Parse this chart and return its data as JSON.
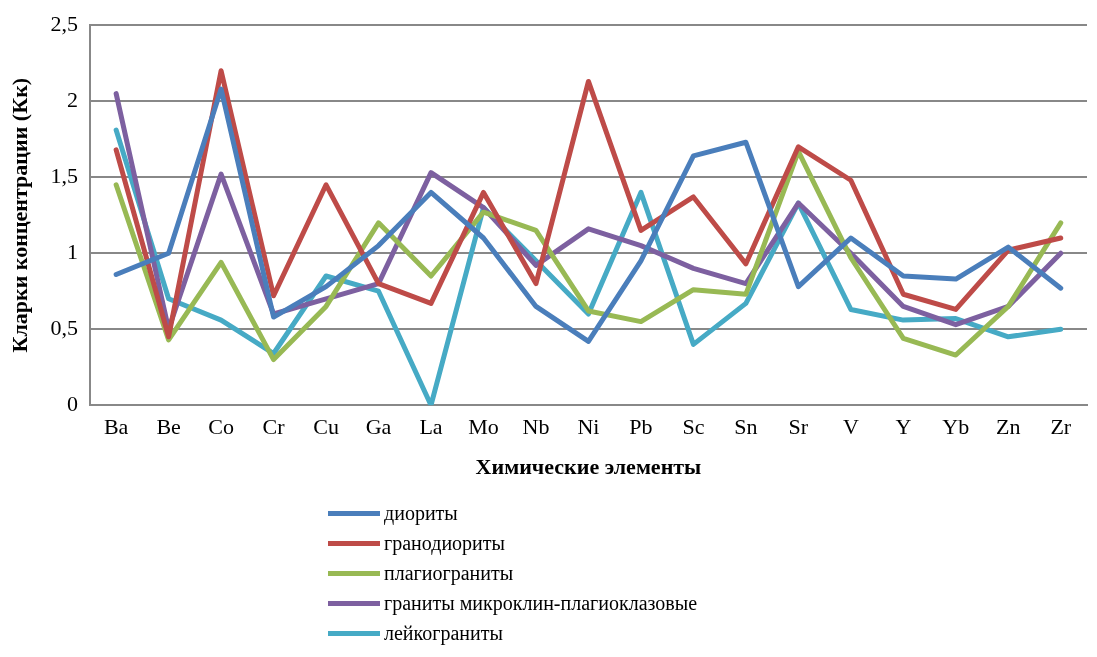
{
  "chart_data": {
    "type": "line",
    "xlabel": "Химические элементы",
    "ylabel": "Кларки концентрации (Кк)",
    "categories": [
      "Ba",
      "Be",
      "Co",
      "Cr",
      "Cu",
      "Ga",
      "La",
      "Mo",
      "Nb",
      "Ni",
      "Pb",
      "Sc",
      "Sn",
      "Sr",
      "V",
      "Y",
      "Yb",
      "Zn",
      "Zr"
    ],
    "ylim": [
      0,
      2.5
    ],
    "yticks": [
      0,
      {
        "value": 0.5,
        "label": "0,5"
      },
      1,
      {
        "value": 1.5,
        "label": "1,5"
      },
      2,
      {
        "value": 2.5,
        "label": "2,5"
      }
    ],
    "grid": "y",
    "legend": "bottom",
    "marker": "none",
    "line_style": "solid",
    "series": [
      {
        "name": "диориты",
        "color": "#4a7ebb",
        "values": [
          0.86,
          1.0,
          2.08,
          0.58,
          0.78,
          1.05,
          1.4,
          1.1,
          0.65,
          0.42,
          0.95,
          1.64,
          1.73,
          0.78,
          1.1,
          0.85,
          0.83,
          1.04,
          0.77
        ]
      },
      {
        "name": "гранодиориты",
        "color": "#be4b48",
        "values": [
          1.68,
          0.45,
          2.2,
          0.72,
          1.45,
          0.8,
          0.67,
          1.4,
          0.8,
          2.13,
          1.15,
          1.37,
          0.93,
          1.7,
          1.48,
          0.73,
          0.63,
          1.02,
          1.1
        ]
      },
      {
        "name": "плагиограниты",
        "color": "#98b954",
        "values": [
          1.45,
          0.43,
          0.94,
          0.3,
          0.65,
          1.2,
          0.85,
          1.27,
          1.15,
          0.62,
          0.55,
          0.76,
          0.73,
          1.67,
          0.97,
          0.44,
          0.33,
          0.65,
          1.2
        ]
      },
      {
        "name": "граниты микроклин-плагиоклазовые",
        "color": "#7d60a0",
        "values": [
          2.05,
          0.5,
          1.52,
          0.6,
          0.7,
          0.8,
          1.53,
          1.3,
          0.92,
          1.16,
          1.05,
          0.9,
          0.8,
          1.33,
          1.0,
          0.65,
          0.53,
          0.65,
          1.0
        ]
      },
      {
        "name": "лейкограниты",
        "color": "#46aac5",
        "values": [
          1.81,
          0.7,
          0.56,
          0.34,
          0.85,
          0.75,
          0.0,
          1.3,
          0.95,
          0.6,
          1.4,
          0.4,
          0.67,
          1.33,
          0.63,
          0.56,
          0.57,
          0.45,
          0.5
        ]
      }
    ]
  }
}
